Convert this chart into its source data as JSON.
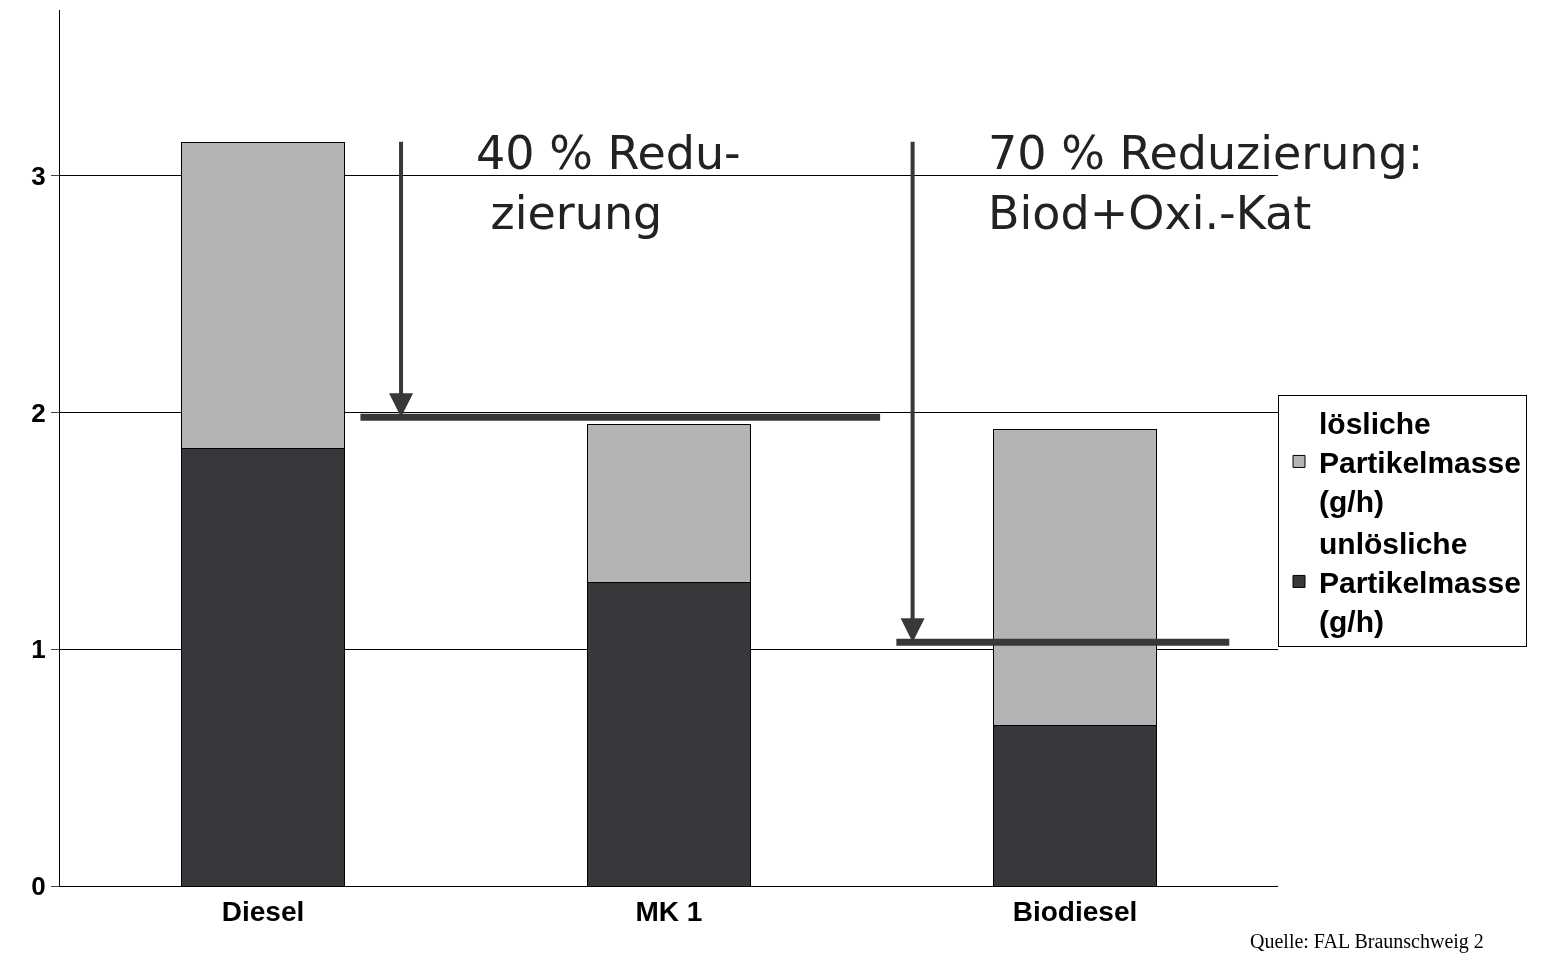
{
  "chart_data": {
    "type": "bar",
    "stacked": true,
    "categories": [
      "Diesel",
      "MK 1",
      "Biodiesel"
    ],
    "series": [
      {
        "name": "unlösliche Partikelmasse (g/h)",
        "color": "#38373c",
        "values": [
          1.85,
          1.28,
          0.68
        ]
      },
      {
        "name": "lösliche Partikelmasse (g/h)",
        "color": "#b4b4b4",
        "values": [
          1.29,
          0.67,
          1.25
        ]
      }
    ],
    "ylim": [
      0,
      3.7
    ],
    "yticks": [
      0,
      1,
      2,
      3
    ],
    "grid": "y",
    "legend": "right",
    "ref_lines": [
      {
        "axis": "y",
        "value": 1.98,
        "color": "#38373c"
      },
      {
        "axis": "y",
        "value": 1.03,
        "color": "#38373c"
      }
    ],
    "annotations": [
      "40 % Redu-\n zierung",
      "70 % Reduzierung:\nBiod+Oxi.-Kat",
      "Quelle: FAL Braunschweig 2"
    ]
  }
}
